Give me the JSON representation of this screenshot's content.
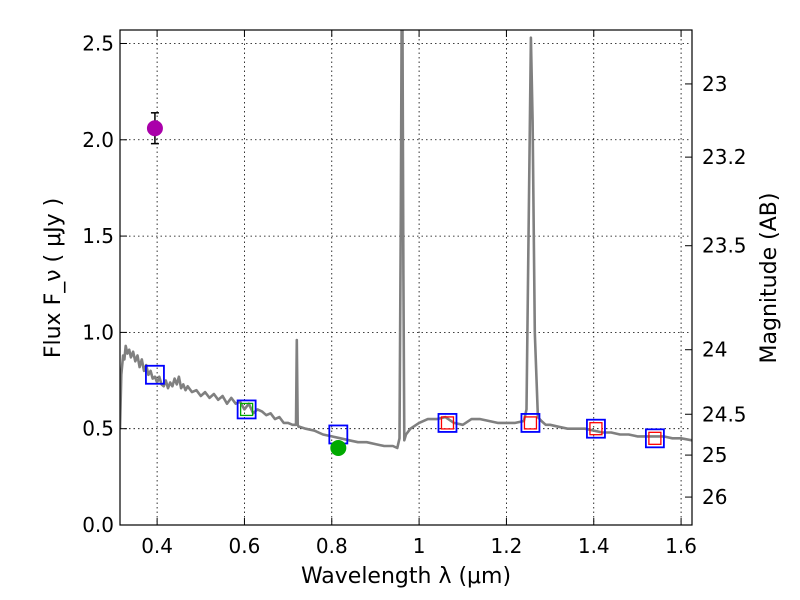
{
  "chart_data": {
    "type": "line",
    "xlabel": "Wavelength  λ (μm)",
    "ylabel_left": "Flux  F_ν  ( μJy )",
    "ylabel_right": "Magnitude (AB)",
    "xlim": [
      0.315,
      1.625
    ],
    "ylim": [
      0.0,
      2.57
    ],
    "x_ticks": [
      0.4,
      0.6,
      0.8,
      1.0,
      1.2,
      1.4,
      1.6
    ],
    "x_tick_labels": [
      "0.4",
      "0.6",
      "0.8",
      "1",
      "1.2",
      "1.4",
      "1.6"
    ],
    "y_ticks": [
      0.0,
      0.5,
      1.0,
      1.5,
      2.0,
      2.5
    ],
    "y_tick_labels": [
      "0.0",
      "0.5",
      "1.0",
      "1.5",
      "2.0",
      "2.5"
    ],
    "right_ticks": [
      {
        "label": "23",
        "flux": 2.29
      },
      {
        "label": "23.2",
        "flux": 1.91
      },
      {
        "label": "23.5",
        "flux": 1.45
      },
      {
        "label": "24",
        "flux": 0.91
      },
      {
        "label": "24.5",
        "flux": 0.575
      },
      {
        "label": "25",
        "flux": 0.363
      },
      {
        "label": "26",
        "flux": 0.145
      }
    ],
    "grid": true,
    "sed_model": {
      "name": "model spectrum",
      "color": "#808080",
      "x": [
        0.315,
        0.318,
        0.322,
        0.325,
        0.328,
        0.332,
        0.336,
        0.34,
        0.345,
        0.35,
        0.355,
        0.36,
        0.365,
        0.37,
        0.375,
        0.38,
        0.385,
        0.39,
        0.395,
        0.4,
        0.405,
        0.41,
        0.415,
        0.42,
        0.425,
        0.43,
        0.435,
        0.44,
        0.445,
        0.45,
        0.455,
        0.46,
        0.465,
        0.47,
        0.48,
        0.49,
        0.5,
        0.51,
        0.52,
        0.53,
        0.54,
        0.55,
        0.56,
        0.57,
        0.58,
        0.59,
        0.6,
        0.61,
        0.62,
        0.63,
        0.64,
        0.65,
        0.66,
        0.67,
        0.68,
        0.69,
        0.7,
        0.71,
        0.718,
        0.72,
        0.722,
        0.724,
        0.726,
        0.74,
        0.76,
        0.78,
        0.8,
        0.82,
        0.84,
        0.86,
        0.88,
        0.9,
        0.92,
        0.94,
        0.95,
        0.955,
        0.958,
        0.96,
        0.962,
        0.964,
        0.966,
        0.97,
        0.98,
        1.0,
        1.02,
        1.04,
        1.06,
        1.08,
        1.1,
        1.12,
        1.14,
        1.16,
        1.18,
        1.2,
        1.22,
        1.24,
        1.246,
        1.25,
        1.256,
        1.26,
        1.265,
        1.272,
        1.28,
        1.29,
        1.3,
        1.32,
        1.34,
        1.36,
        1.38,
        1.4,
        1.42,
        1.44,
        1.46,
        1.48,
        1.5,
        1.52,
        1.54,
        1.56,
        1.58,
        1.6,
        1.625
      ],
      "y": [
        0.5,
        0.78,
        0.88,
        0.86,
        0.93,
        0.89,
        0.91,
        0.87,
        0.9,
        0.85,
        0.88,
        0.82,
        0.86,
        0.8,
        0.83,
        0.78,
        0.8,
        0.76,
        0.77,
        0.74,
        0.77,
        0.73,
        0.72,
        0.75,
        0.71,
        0.74,
        0.72,
        0.76,
        0.73,
        0.77,
        0.71,
        0.73,
        0.7,
        0.72,
        0.69,
        0.7,
        0.67,
        0.69,
        0.66,
        0.68,
        0.65,
        0.67,
        0.63,
        0.66,
        0.63,
        0.64,
        0.6,
        0.63,
        0.58,
        0.6,
        0.59,
        0.57,
        0.58,
        0.55,
        0.56,
        0.53,
        0.53,
        0.52,
        0.52,
        0.96,
        0.52,
        0.51,
        0.51,
        0.5,
        0.49,
        0.47,
        0.46,
        0.45,
        0.44,
        0.43,
        0.43,
        0.42,
        0.41,
        0.41,
        0.4,
        0.45,
        1.6,
        2.57,
        2.57,
        1.3,
        0.44,
        0.47,
        0.5,
        0.53,
        0.55,
        0.55,
        0.56,
        0.53,
        0.52,
        0.55,
        0.55,
        0.54,
        0.53,
        0.53,
        0.53,
        0.54,
        0.6,
        1.4,
        2.53,
        2.1,
        1.0,
        0.56,
        0.54,
        0.52,
        0.52,
        0.51,
        0.5,
        0.5,
        0.5,
        0.49,
        0.48,
        0.48,
        0.47,
        0.47,
        0.46,
        0.46,
        0.46,
        0.46,
        0.45,
        0.45,
        0.44
      ]
    },
    "model_photometry": {
      "name": "model photometry",
      "marker": "square",
      "color": "#0000ff",
      "x": [
        0.395,
        0.605,
        0.815,
        1.065,
        1.255,
        1.405,
        1.54
      ],
      "y": [
        0.78,
        0.6,
        0.47,
        0.53,
        0.53,
        0.5,
        0.45
      ]
    },
    "inner_markers": [
      {
        "name": "green-small-square",
        "color": "#00aa00",
        "x": 0.605,
        "y": 0.6
      },
      {
        "name": "red-small-square",
        "color": "#ff0000",
        "x": 1.065,
        "y": 0.53
      },
      {
        "name": "red-small-square",
        "color": "#ff0000",
        "x": 1.255,
        "y": 0.53
      },
      {
        "name": "red-small-square",
        "color": "#ff0000",
        "x": 1.405,
        "y": 0.5
      },
      {
        "name": "red-small-square",
        "color": "#ff0000",
        "x": 1.54,
        "y": 0.45
      }
    ],
    "observed_photometry": [
      {
        "name": "magenta-point",
        "color": "#aa00aa",
        "x": 0.395,
        "y": 2.06,
        "yerr": 0.08
      },
      {
        "name": "green-point",
        "color": "#00aa00",
        "x": 0.815,
        "y": 0.4,
        "yerr": 0.02
      }
    ]
  }
}
